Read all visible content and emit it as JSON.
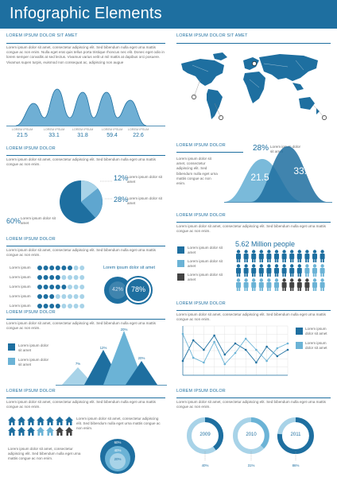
{
  "header": {
    "title": "Infographic Elements"
  },
  "colors": {
    "primary": "#1e6fa0",
    "light": "#6bb3d6",
    "pale": "#a8d3e8",
    "dark": "#444444",
    "grey": "#c7c7c7"
  },
  "sections": {
    "s1": {
      "heading": "LOREM IPSUM DOLOR SIT AMET",
      "body": "Lorem ipsum dolor sit amet, consectetur adipiscing elit. Sed bibendum nulla eget urna mattis congue ac non enim. Nulla eget erat quis tellus porta tristique rhoncus nec elit. Donec eget odio in lorem semper convallis at sed lectus. Vivamus varius velit ut mil mattis at dapibus orci posuere. Vivamus supen turpis, euismod non consequat ac, adipiscing non augue",
      "peaks": [
        {
          "label": "LOREM IPSUM",
          "value": "21.5"
        },
        {
          "label": "LOREM IPSUM",
          "value": "33.1"
        },
        {
          "label": "LOREM IPSUM",
          "value": "31.8"
        },
        {
          "label": "LOREM IPSUM",
          "value": "59.4"
        },
        {
          "label": "LOREM IPSUM",
          "value": "22.6"
        }
      ]
    },
    "s2": {
      "heading": "LOREM IPSUM DOLOR SIT AMET"
    },
    "s3": {
      "heading": "LOREM IPSUM DOLOR",
      "body": "Lorem ipsum dolor sit amet, consectetur adipiscing elit. Sed bibendum nulla eget urna mattis congue ac non enim.",
      "pie_labels": [
        "12%",
        "28%",
        "60%"
      ],
      "pie_text": [
        "Lorem ipsum dolor sit amet",
        "Lorem ipsum dolor sit amet",
        "Lorem ipsum dolor sit amet"
      ]
    },
    "s4": {
      "heading": "LOREM IPSUM DOLOR",
      "side": "Lorem ipsum dolor sit amet, consectetur adipiscing elit. Sed bibendum nulla eget urna mattis congue ac non enim.",
      "badge": "28%",
      "badge_text": "Lorem ipsum dolor sit amet",
      "bell_values": [
        "21.5",
        "33.1"
      ]
    },
    "s5": {
      "heading": "LOREM IPSUM DOLOR",
      "body": "Lorem ipsum dolor sit amet, consectetur adipiscing elit. Sed bibendum nulla eget urna mattis congue ac non enim.",
      "rows": [
        "Lorem ipsum",
        "Lorem ipsum",
        "Lorem ipsum",
        "Lorem ipsum",
        "Lorem ipsum"
      ],
      "donut_title": "Lorem ipsum dolor sit amet",
      "donut_values": [
        "42%",
        "78%"
      ]
    },
    "s6": {
      "heading": "LOREM IPSUM DOLOR",
      "body": "Lorem ipsum dolor sit amet, consectetur adipiscing elit. Sed bibendum nulla eget urna mattis congue ac non enim.",
      "legend": [
        "Lorem ipsum dolor sit amet",
        "Lorem ipsum dolor sit amet",
        "Lorem ipsum dolor sit amet"
      ],
      "people_title": "5.62 Million people"
    },
    "s7": {
      "heading": "LOREM IPSUM DOLOR",
      "body": "Lorem ipsum dolor sit amet, consectetur adipiscing elit. Sed bibendum nulla eget urna mattis congue ac non enim.",
      "legend": [
        "Lorem ipsum dolor sit amet",
        "Lorem ipsum dolor sit amet"
      ],
      "tri_labels": [
        "7%",
        "12%",
        "20%",
        "20%"
      ]
    },
    "s8": {
      "heading": "LOREM IPSUM DOLOR",
      "body": "Lorem ipsum dolor sit amet, consectetur adipiscing elit. Sed bibendum nulla eget urna mattis congue ac non enim.",
      "legend": [
        "Lorem ipsum dolor sit amet",
        "Lorem ipsum dolor sit amet"
      ]
    },
    "s9": {
      "heading": "LOREM IPSUM DOLOR",
      "body": "Lorem ipsum dolor sit amet, consectetur adipiscing elit. Sed bibendum nulla eget urna mattis congue ac non enim.",
      "body2": "Lorem ipsum dolor sit amet, consectetur adipiscing elit. Sed bibendum nulla eget urna mattis congue ac non enim.",
      "circle_labels": [
        "60%",
        "40%",
        "20%"
      ]
    },
    "s10": {
      "heading": "LOREM IPSUM DOLOR",
      "body": "Lorem ipsum dolor sit amet, consectetur adipiscing elit. Sed bibendum nulla eget urna mattis congue ac non enim.",
      "years": [
        "2009",
        "2010",
        "2011"
      ],
      "pcts": [
        "40%",
        "31%",
        "86%"
      ]
    }
  }
}
